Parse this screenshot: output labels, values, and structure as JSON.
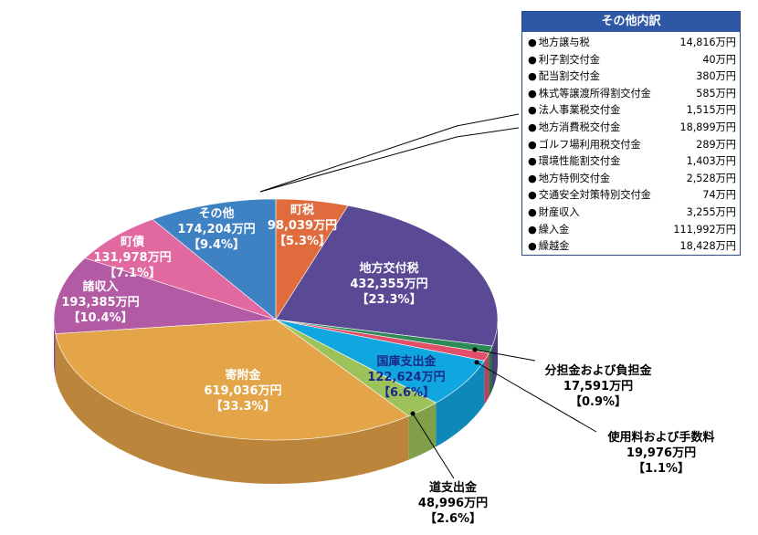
{
  "chart_data": {
    "type": "pie",
    "unit": "万円",
    "slices": [
      {
        "name": "町税",
        "value": 98039,
        "percent": "5.3%",
        "color": "#e06b3c"
      },
      {
        "name": "地方交付税",
        "value": 432355,
        "percent": "23.3%",
        "color": "#5a4a96"
      },
      {
        "name": "分担金および負担金",
        "value": 17591,
        "percent": "0.9%",
        "color": "#2e8b57"
      },
      {
        "name": "使用料および手数料",
        "value": 19976,
        "percent": "1.1%",
        "color": "#e0506a"
      },
      {
        "name": "国庫支出金",
        "value": 122624,
        "percent": "6.6%",
        "color": "#10a6e0"
      },
      {
        "name": "道支出金",
        "value": 48996,
        "percent": "2.6%",
        "color": "#9dc25a"
      },
      {
        "name": "寄附金",
        "value": 619036,
        "percent": "33.3%",
        "color": "#e4a448"
      },
      {
        "name": "諸収入",
        "value": 193385,
        "percent": "10.4%",
        "color": "#b35aa4"
      },
      {
        "name": "町債",
        "value": 131978,
        "percent": "7.1%",
        "color": "#e268a0"
      },
      {
        "name": "その他",
        "value": 174204,
        "percent": "9.4%",
        "color": "#3f82c4"
      }
    ],
    "labels": {
      "町税": {
        "value_text": "98,039万円",
        "pct_text": "【5.3%】"
      },
      "地方交付税": {
        "value_text": "432,355万円",
        "pct_text": "【23.3%】"
      },
      "分担金および負担金": {
        "value_text": "17,591万円",
        "pct_text": "【0.9%】"
      },
      "使用料および手数料": {
        "value_text": "19,976万円",
        "pct_text": "【1.1%】"
      },
      "国庫支出金": {
        "value_text": "122,624万円",
        "pct_text": "【6.6%】"
      },
      "道支出金": {
        "value_text": "48,996万円",
        "pct_text": "【2.6%】"
      },
      "寄附金": {
        "value_text": "619,036万円",
        "pct_text": "【33.3%】"
      },
      "諸収入": {
        "value_text": "193,385万円",
        "pct_text": "【10.4%】"
      },
      "町債": {
        "value_text": "131,978万円",
        "pct_text": "【7.1%】"
      },
      "その他": {
        "value_text": "174,204万円",
        "pct_text": "【9.4%】"
      }
    },
    "other_breakdown": {
      "title": "その他内訳",
      "items": [
        {
          "name": "地方譲与税",
          "amount": "14,816万円"
        },
        {
          "name": "利子割交付金",
          "amount": "40万円"
        },
        {
          "name": "配当割交付金",
          "amount": "380万円"
        },
        {
          "name": "株式等譲渡所得割交付金",
          "amount": "585万円"
        },
        {
          "name": "法人事業税交付金",
          "amount": "1,515万円"
        },
        {
          "name": "地方消費税交付金",
          "amount": "18,899万円"
        },
        {
          "name": "ゴルフ場利用税交付金",
          "amount": "289万円"
        },
        {
          "name": "環境性能割交付金",
          "amount": "1,403万円"
        },
        {
          "name": "地方特例交付金",
          "amount": "2,528万円"
        },
        {
          "name": "交通安全対策特別交付金",
          "amount": "74万円"
        },
        {
          "name": "財産収入",
          "amount": "3,255万円"
        },
        {
          "name": "繰入金",
          "amount": "111,992万円"
        },
        {
          "name": "繰越金",
          "amount": "18,428万円"
        }
      ]
    }
  }
}
